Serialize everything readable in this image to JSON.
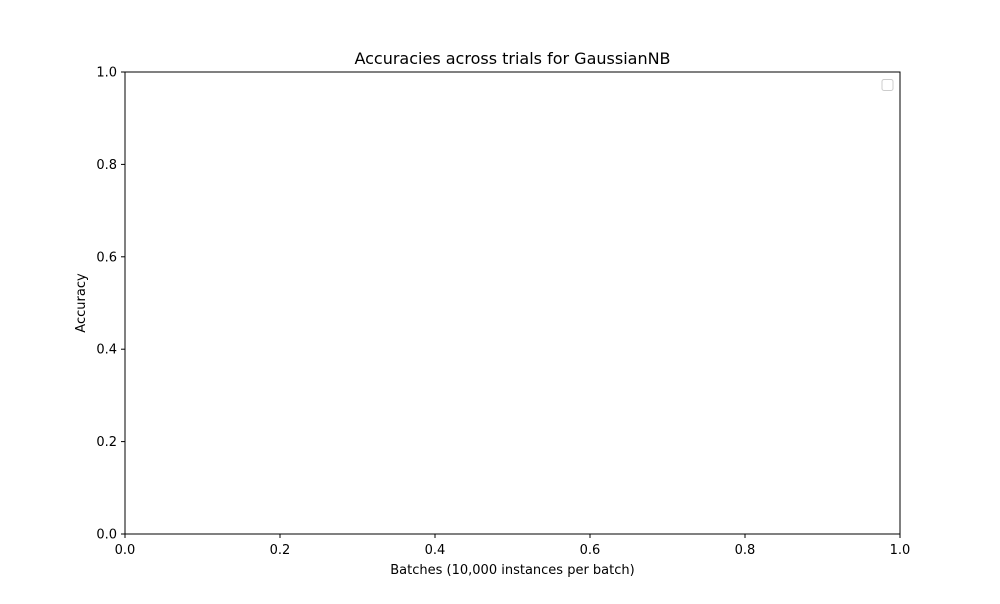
{
  "chart_data": {
    "type": "line",
    "title": "Accuracies across trials for GaussianNB",
    "xlabel": "Batches (10,000 instances per batch)",
    "ylabel": "Accuracy",
    "xlim": [
      0.0,
      1.0
    ],
    "ylim": [
      0.0,
      1.0
    ],
    "x_ticks": [
      "0.0",
      "0.2",
      "0.4",
      "0.6",
      "0.8",
      "1.0"
    ],
    "y_ticks": [
      "0.0",
      "0.2",
      "0.4",
      "0.6",
      "0.8",
      "1.0"
    ],
    "series": [],
    "grid": false,
    "legend": {
      "placement": "top-right",
      "entries": []
    }
  }
}
